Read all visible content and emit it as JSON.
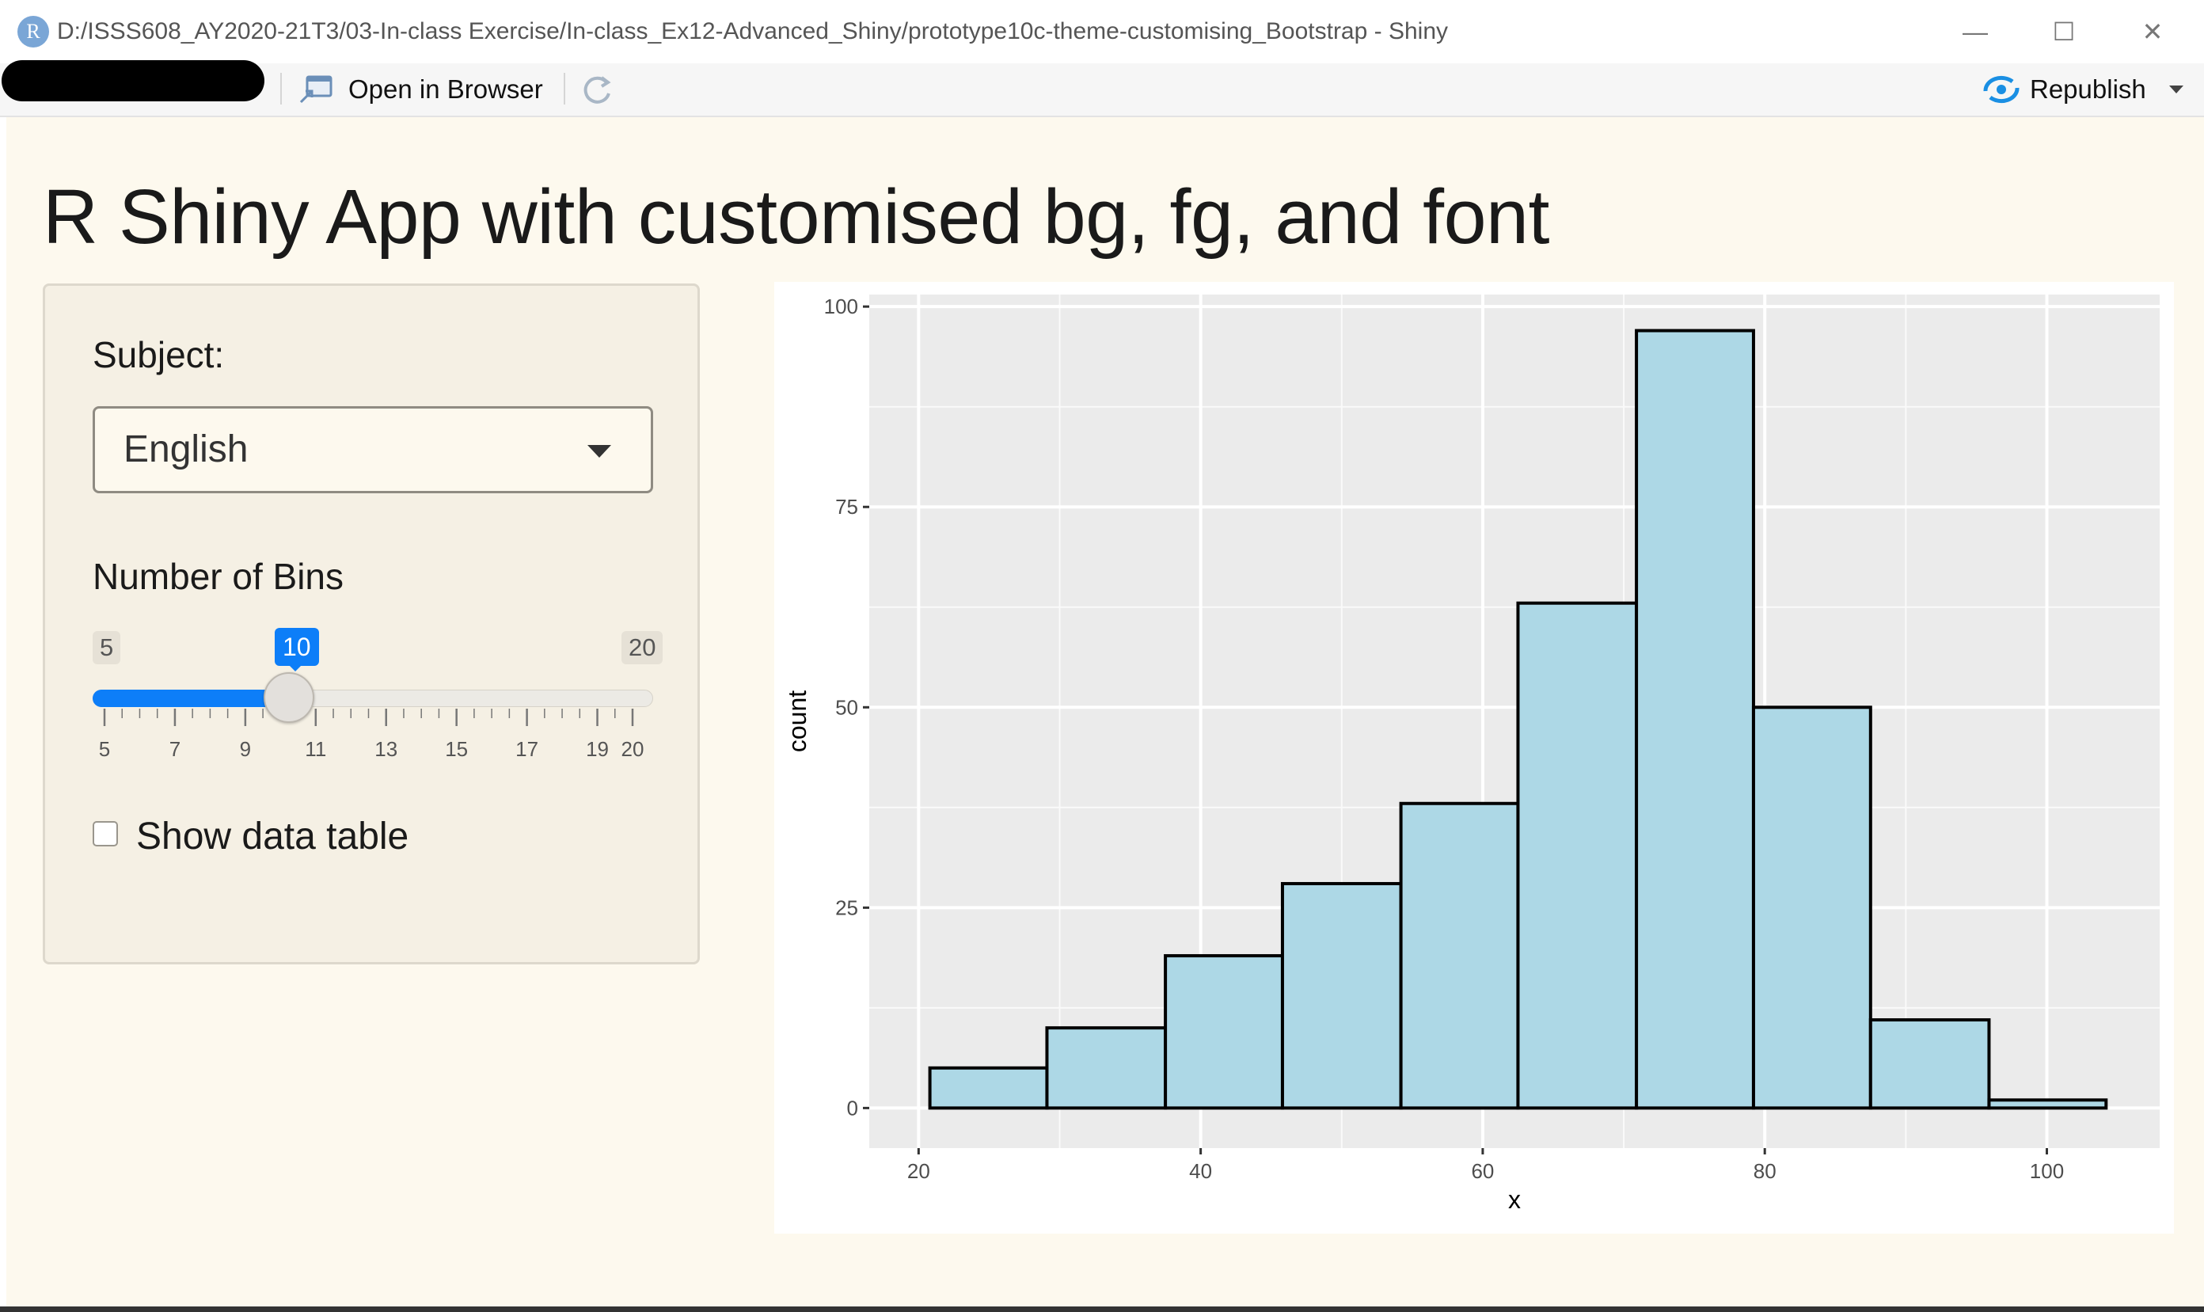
{
  "window": {
    "title": "D:/ISSS608_AY2020-21T3/03-In-class Exercise/In-class_Ex12-Advanced_Shiny/prototype10c-theme-customising_Bootstrap - Shiny",
    "app_icon_letter": "R",
    "minimize": "—",
    "maximize": "☐",
    "close": "✕"
  },
  "toolbar": {
    "open_in_browser": "Open in Browser",
    "republish": "Republish"
  },
  "page": {
    "title": "R Shiny App with customised bg, fg, and font"
  },
  "sidebar": {
    "subject_label": "Subject:",
    "subject_value": "English",
    "bins_label": "Number of Bins",
    "slider": {
      "min": "5",
      "max": "20",
      "value": "10",
      "value_number": 10,
      "min_number": 5,
      "max_number": 20,
      "tick_labels": [
        "5",
        "7",
        "9",
        "11",
        "13",
        "15",
        "17",
        "19",
        "20"
      ]
    },
    "show_table_label": "Show data table",
    "show_table_checked": false
  },
  "colors": {
    "page_bg": "#fdf9ee",
    "accent": "#0d7ef8",
    "bar_fill": "#add8e6",
    "panel_bg": "#ebebeb"
  },
  "chart_data": {
    "type": "bar",
    "subtype": "histogram",
    "xlabel": "x",
    "ylabel": "count",
    "xlim": [
      16.5,
      108
    ],
    "ylim": [
      -5,
      101.5
    ],
    "x_ticks": [
      20,
      40,
      60,
      80,
      100
    ],
    "y_ticks": [
      0,
      25,
      50,
      75,
      100
    ],
    "grid": true,
    "bins": [
      {
        "x0": 20.8,
        "x1": 29.1,
        "count": 5
      },
      {
        "x0": 29.1,
        "x1": 37.5,
        "count": 10
      },
      {
        "x0": 37.5,
        "x1": 45.8,
        "count": 19
      },
      {
        "x0": 45.8,
        "x1": 54.2,
        "count": 28
      },
      {
        "x0": 54.2,
        "x1": 62.5,
        "count": 38
      },
      {
        "x0": 62.5,
        "x1": 70.9,
        "count": 63
      },
      {
        "x0": 70.9,
        "x1": 79.2,
        "count": 97
      },
      {
        "x0": 79.2,
        "x1": 87.5,
        "count": 50
      },
      {
        "x0": 87.5,
        "x1": 95.9,
        "count": 11
      },
      {
        "x0": 95.9,
        "x1": 104.2,
        "count": 1
      }
    ]
  }
}
